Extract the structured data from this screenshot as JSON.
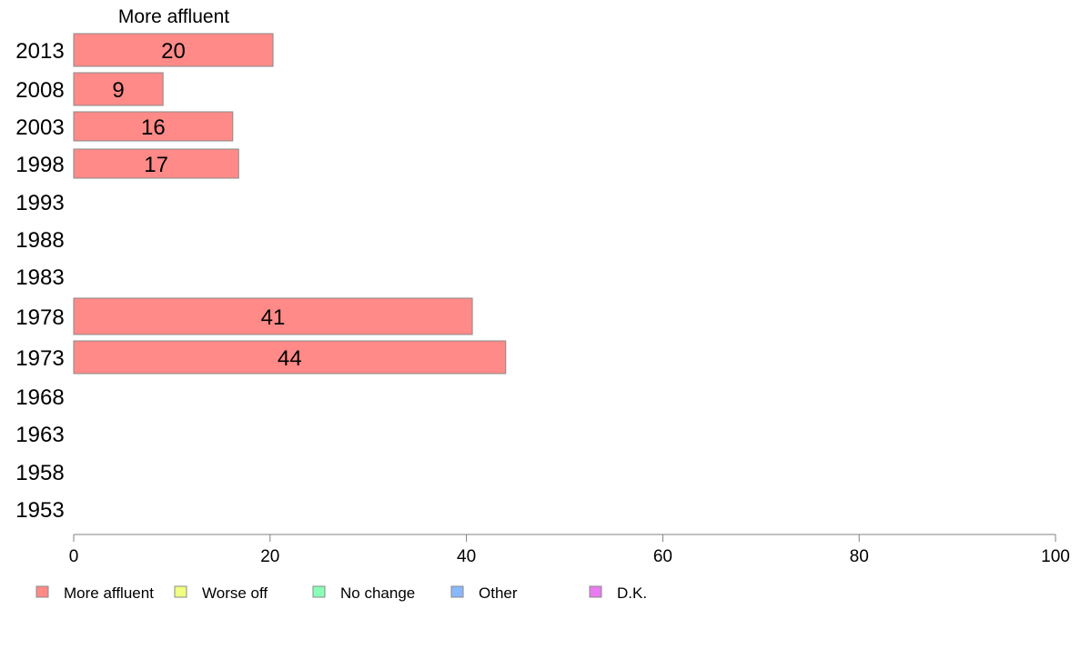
{
  "chart_data": {
    "type": "bar",
    "orientation": "horizontal",
    "series_title": "More affluent",
    "categories": [
      "2013",
      "2008",
      "2003",
      "1998",
      "1993",
      "1988",
      "1983",
      "1978",
      "1973",
      "1968",
      "1963",
      "1958",
      "1953"
    ],
    "series": [
      {
        "name": "More affluent",
        "color": "#ff8a87",
        "values": [
          20.3,
          9.1,
          16.2,
          16.8,
          null,
          null,
          null,
          40.6,
          44.0,
          null,
          null,
          null,
          null
        ]
      }
    ],
    "data_labels": [
      "20",
      "9",
      "16",
      "17",
      "",
      "",
      "",
      "41",
      "44",
      "",
      "",
      "",
      ""
    ],
    "xlim": [
      0,
      100
    ],
    "xticks": [
      "0",
      "20",
      "40",
      "60",
      "80",
      "100"
    ],
    "legend": [
      {
        "label": "More affluent",
        "color": "#ff8a87"
      },
      {
        "label": "Worse off",
        "color": "#f0ff80"
      },
      {
        "label": "No change",
        "color": "#8affb8"
      },
      {
        "label": "Other",
        "color": "#8ab8ff"
      },
      {
        "label": "D.K.",
        "color": "#e87cf0"
      }
    ],
    "legend_position": "bottom-left",
    "grid": false
  }
}
